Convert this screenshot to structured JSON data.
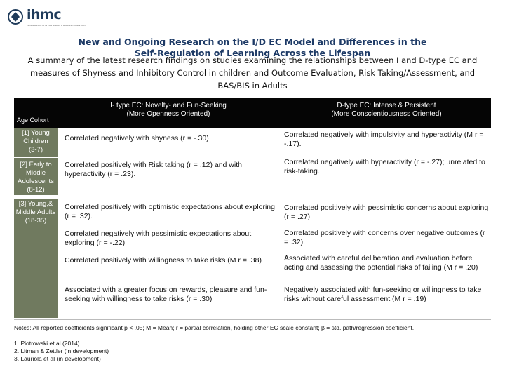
{
  "logo": {
    "text": "ihmc",
    "subtitle": "FLORIDA INSTITUTE FOR HUMAN & MACHINE COGNITION"
  },
  "title": {
    "line1": "New and Ongoing Research on the I/D EC Model and Differences in the",
    "line2": "Self-Regulation of Learning Across the Lifespan"
  },
  "summary": "A summary of the latest research findings on studies examining the relationships between I and D-type EC and measures of Shyness and Inhibitory Control in children and Outcome Evaluation, Risk Taking/Assessment, and BAS/BIS in Adults",
  "table": {
    "header": {
      "cohort": "Age Cohort",
      "itype_line1": "I- type EC: Novelty- and Fun-Seeking",
      "itype_line2": "(More Openness Oriented)",
      "dtype_line1": "D-type EC: Intense & Persistent",
      "dtype_line2": "(More Conscientiousness Oriented)"
    },
    "cohorts": [
      {
        "ref": "[1]",
        "label": "Young Children",
        "range": "(3-7)"
      },
      {
        "ref": "[2]",
        "label": "Early to Middle Adolescents",
        "range": "(8-12)"
      },
      {
        "ref": "[3]",
        "label": "Young,& Middle Adults",
        "range": "(18-35)"
      }
    ],
    "rows": [
      {
        "itype": "Correlated negatively with shyness (r = -.30)",
        "dtype": "Correlated negatively with impulsivity and hyperactivity (M r = -.17)."
      },
      {
        "itype": "Correlated positively with Risk taking (r = .12) and with hyperactivity (r = .23).",
        "dtype": "Correlated negatively with hyperactivity (r = -.27); unrelated to risk-taking."
      },
      {
        "itype": "Correlated positively with optimistic expectations about exploring (r = .32).",
        "dtype": "Correlated positively with pessimistic concerns about exploring (r = .27)"
      },
      {
        "itype": "Correlated negatively with pessimistic expectations about exploring (r = -.22)",
        "dtype": "Correlated positively with concerns over negative outcomes (r = .32)."
      },
      {
        "itype": "Correlated positively with willingness to take risks (M r = .38)",
        "dtype": "Associated with careful deliberation and evaluation before acting and assessing the potential risks of failing (M r = .20)"
      },
      {
        "itype": "Associated with a greater focus on rewards, pleasure and fun-seeking with willingness to take risks (r = .30)",
        "dtype": "Negatively associated with fun-seeking or willingness to take risks without careful assessment (M r = .19)"
      }
    ]
  },
  "notes": "Notes: All reported coefficients significant p < .05; M = Mean; r = partial correlation, holding other EC scale constant; β = std. path/regression coefficient.",
  "references": [
    "1. Piotrowski et al (2014)",
    "2. Litman & Zettler (in development)",
    "3. Lauriola et al (in development)"
  ]
}
